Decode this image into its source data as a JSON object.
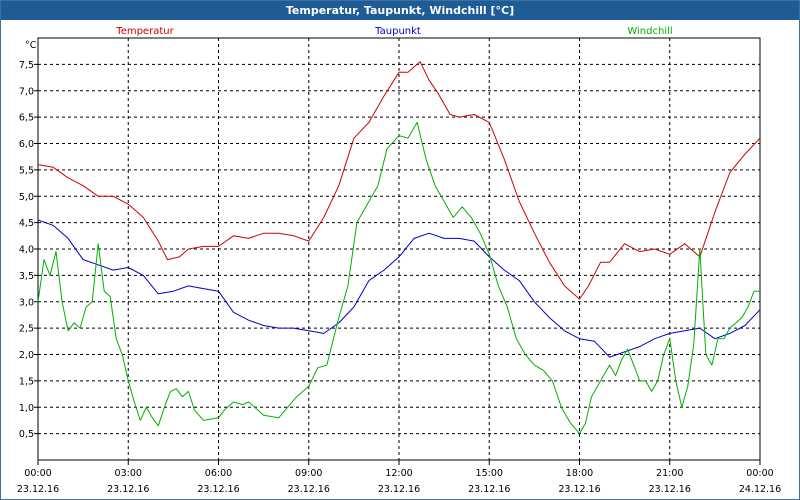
{
  "window": {
    "title": "Temperatur, Taupunkt, Windchill [°C]"
  },
  "chart_data": {
    "type": "line",
    "title": "Temperatur, Taupunkt, Windchill [°C]",
    "ylabel": "°C",
    "xlabel": "",
    "ylim": [
      0,
      8
    ],
    "xlim": [
      0,
      24
    ],
    "grid": true,
    "legend": "top",
    "y_ticks": [
      "0,5",
      "1,0",
      "1,5",
      "2,0",
      "2,5",
      "3,0",
      "3,5",
      "4,0",
      "4,5",
      "5,0",
      "5,5",
      "6,0",
      "6,5",
      "7,0",
      "7,5"
    ],
    "y_tick_values": [
      0.5,
      1.0,
      1.5,
      2.0,
      2.5,
      3.0,
      3.5,
      4.0,
      4.5,
      5.0,
      5.5,
      6.0,
      6.5,
      7.0,
      7.5
    ],
    "x_ticks": [
      {
        "time": "00:00",
        "date": "23.12.16"
      },
      {
        "time": "03:00",
        "date": "23.12.16"
      },
      {
        "time": "06:00",
        "date": "23.12.16"
      },
      {
        "time": "09:00",
        "date": "23.12.16"
      },
      {
        "time": "12:00",
        "date": "23.12.16"
      },
      {
        "time": "15:00",
        "date": "23.12.16"
      },
      {
        "time": "18:00",
        "date": "23.12.16"
      },
      {
        "time": "21:00",
        "date": "23.12.16"
      },
      {
        "time": "00:00",
        "date": "24.12.16"
      }
    ],
    "x_tick_values": [
      0,
      3,
      6,
      9,
      12,
      15,
      18,
      21,
      24
    ],
    "series": [
      {
        "name": "Temperatur",
        "color": "#d00000",
        "x": [
          0,
          0.5,
          1,
          1.5,
          2,
          2.5,
          3,
          3.5,
          4,
          4.3,
          4.7,
          5,
          5.5,
          6,
          6.5,
          7,
          7.5,
          8,
          8.5,
          9,
          9.5,
          10,
          10.5,
          11,
          11.5,
          12,
          12.3,
          12.7,
          13,
          13.3,
          13.7,
          14,
          14.5,
          15,
          15.5,
          16,
          16.5,
          17,
          17.5,
          18,
          18.3,
          18.7,
          19,
          19.5,
          20,
          20.5,
          21,
          21.5,
          22,
          22.5,
          23,
          23.5,
          24
        ],
        "values": [
          5.6,
          5.55,
          5.35,
          5.2,
          5.0,
          5.0,
          4.85,
          4.6,
          4.15,
          3.8,
          3.85,
          4.0,
          4.05,
          4.05,
          4.25,
          4.2,
          4.3,
          4.3,
          4.25,
          4.15,
          4.6,
          5.2,
          6.1,
          6.4,
          6.9,
          7.35,
          7.35,
          7.55,
          7.2,
          6.95,
          6.55,
          6.5,
          6.55,
          6.4,
          5.7,
          4.9,
          4.3,
          3.75,
          3.3,
          3.05,
          3.3,
          3.75,
          3.75,
          4.1,
          3.95,
          4.0,
          3.9,
          4.1,
          3.85,
          4.7,
          5.45,
          5.8,
          6.1
        ]
      },
      {
        "name": "Taupunkt",
        "color": "#0000cc",
        "x": [
          0,
          0.5,
          1,
          1.5,
          2,
          2.5,
          3,
          3.5,
          4,
          4.5,
          5,
          5.5,
          6,
          6.5,
          7,
          7.5,
          8,
          8.5,
          9,
          9.5,
          10,
          10.5,
          11,
          11.5,
          12,
          12.5,
          13,
          13.5,
          14,
          14.5,
          15,
          15.5,
          16,
          16.5,
          17,
          17.5,
          18,
          18.5,
          19,
          19.5,
          20,
          20.5,
          21,
          21.5,
          22,
          22.5,
          23,
          23.5,
          24
        ],
        "values": [
          4.55,
          4.45,
          4.2,
          3.8,
          3.7,
          3.6,
          3.65,
          3.5,
          3.15,
          3.2,
          3.3,
          3.25,
          3.2,
          2.8,
          2.65,
          2.55,
          2.5,
          2.5,
          2.45,
          2.4,
          2.6,
          2.9,
          3.4,
          3.6,
          3.85,
          4.2,
          4.3,
          4.2,
          4.2,
          4.15,
          3.85,
          3.6,
          3.4,
          3.0,
          2.7,
          2.45,
          2.3,
          2.25,
          1.95,
          2.05,
          2.15,
          2.3,
          2.4,
          2.45,
          2.5,
          2.3,
          2.4,
          2.55,
          2.85
        ]
      },
      {
        "name": "Windchill",
        "color": "#00b000",
        "x": [
          0,
          0.2,
          0.4,
          0.6,
          0.8,
          1,
          1.2,
          1.4,
          1.6,
          1.8,
          2,
          2.2,
          2.4,
          2.6,
          2.8,
          3,
          3.2,
          3.4,
          3.6,
          3.8,
          4,
          4.2,
          4.4,
          4.6,
          4.8,
          5,
          5.2,
          5.5,
          6,
          6.2,
          6.5,
          6.8,
          7,
          7.5,
          8,
          8.3,
          8.6,
          9,
          9.3,
          9.6,
          10,
          10.3,
          10.6,
          11,
          11.3,
          11.6,
          12,
          12.3,
          12.6,
          12.9,
          13.2,
          13.5,
          13.8,
          14.1,
          14.4,
          14.7,
          15,
          15.3,
          15.6,
          15.9,
          16.2,
          16.5,
          16.8,
          17.1,
          17.4,
          17.7,
          18,
          18.2,
          18.4,
          18.6,
          18.8,
          19,
          19.2,
          19.4,
          19.6,
          19.8,
          20,
          20.2,
          20.4,
          20.6,
          20.8,
          21,
          21.2,
          21.4,
          21.6,
          21.8,
          22,
          22.2,
          22.4,
          22.6,
          22.8,
          23,
          23.2,
          23.4,
          23.6,
          23.8,
          24
        ],
        "values": [
          3.0,
          3.8,
          3.5,
          3.95,
          3.0,
          2.45,
          2.6,
          2.5,
          2.9,
          3.0,
          4.1,
          3.2,
          3.1,
          2.3,
          2.0,
          1.5,
          1.1,
          0.75,
          1.0,
          0.8,
          0.65,
          1.0,
          1.3,
          1.35,
          1.2,
          1.3,
          0.95,
          0.75,
          0.8,
          0.95,
          1.1,
          1.05,
          1.1,
          0.85,
          0.8,
          1.0,
          1.2,
          1.4,
          1.75,
          1.8,
          2.7,
          3.3,
          4.5,
          4.9,
          5.2,
          5.9,
          6.15,
          6.1,
          6.4,
          5.7,
          5.2,
          4.9,
          4.6,
          4.8,
          4.6,
          4.3,
          3.9,
          3.3,
          2.9,
          2.3,
          2.0,
          1.8,
          1.7,
          1.5,
          1.0,
          0.7,
          0.5,
          0.7,
          1.2,
          1.4,
          1.6,
          1.8,
          1.6,
          1.9,
          2.1,
          1.8,
          1.5,
          1.5,
          1.3,
          1.5,
          2.0,
          2.3,
          1.5,
          1.0,
          1.4,
          2.2,
          4.0,
          2.0,
          1.8,
          2.3,
          2.3,
          2.5,
          2.6,
          2.7,
          2.9,
          3.2,
          3.2
        ]
      }
    ]
  }
}
